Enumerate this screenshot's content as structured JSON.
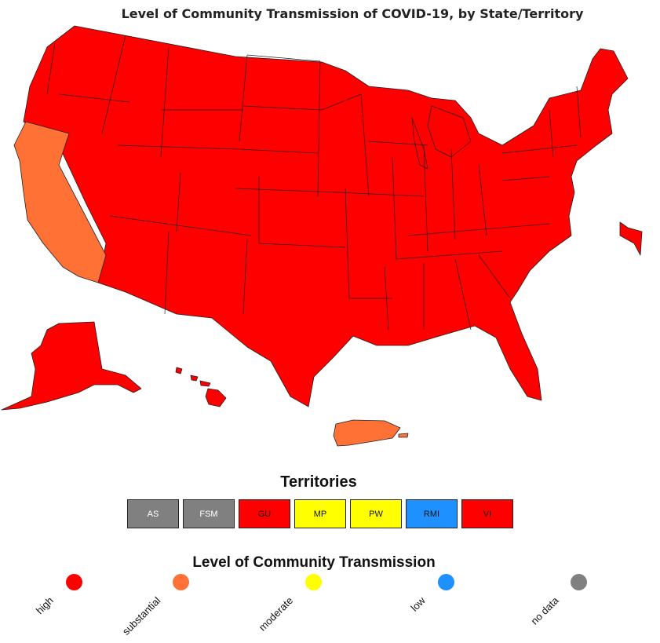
{
  "title": "Level of Community Transmission of COVID-19, by State/Territory",
  "colors": {
    "high": "#ff0000",
    "substantial": "#ff7135",
    "moderate": "#ffff00",
    "low": "#1e90ff",
    "no_data": "#808080",
    "border": "#222222"
  },
  "regions": [
    {
      "name": "Contiguous United States (other states)",
      "level": "high"
    },
    {
      "name": "California",
      "level": "substantial"
    },
    {
      "name": "Alaska",
      "level": "high"
    },
    {
      "name": "Hawaii",
      "level": "high"
    },
    {
      "name": "Puerto Rico",
      "level": "substantial"
    },
    {
      "name": "Delaware",
      "level": "high"
    }
  ],
  "territories": {
    "title": "Territories",
    "items": [
      {
        "label": "AS",
        "level": "no_data"
      },
      {
        "label": "FSM",
        "level": "no_data"
      },
      {
        "label": "GU",
        "level": "high"
      },
      {
        "label": "MP",
        "level": "moderate"
      },
      {
        "label": "PW",
        "level": "moderate"
      },
      {
        "label": "RMI",
        "level": "low"
      },
      {
        "label": "VI",
        "level": "high"
      }
    ]
  },
  "legend": {
    "title": "Level of Community Transmission",
    "items": [
      {
        "key": "high",
        "label": "high"
      },
      {
        "key": "substantial",
        "label": "substantial"
      },
      {
        "key": "moderate",
        "label": "moderate"
      },
      {
        "key": "low",
        "label": "low"
      },
      {
        "key": "no_data",
        "label": "no data"
      }
    ]
  }
}
